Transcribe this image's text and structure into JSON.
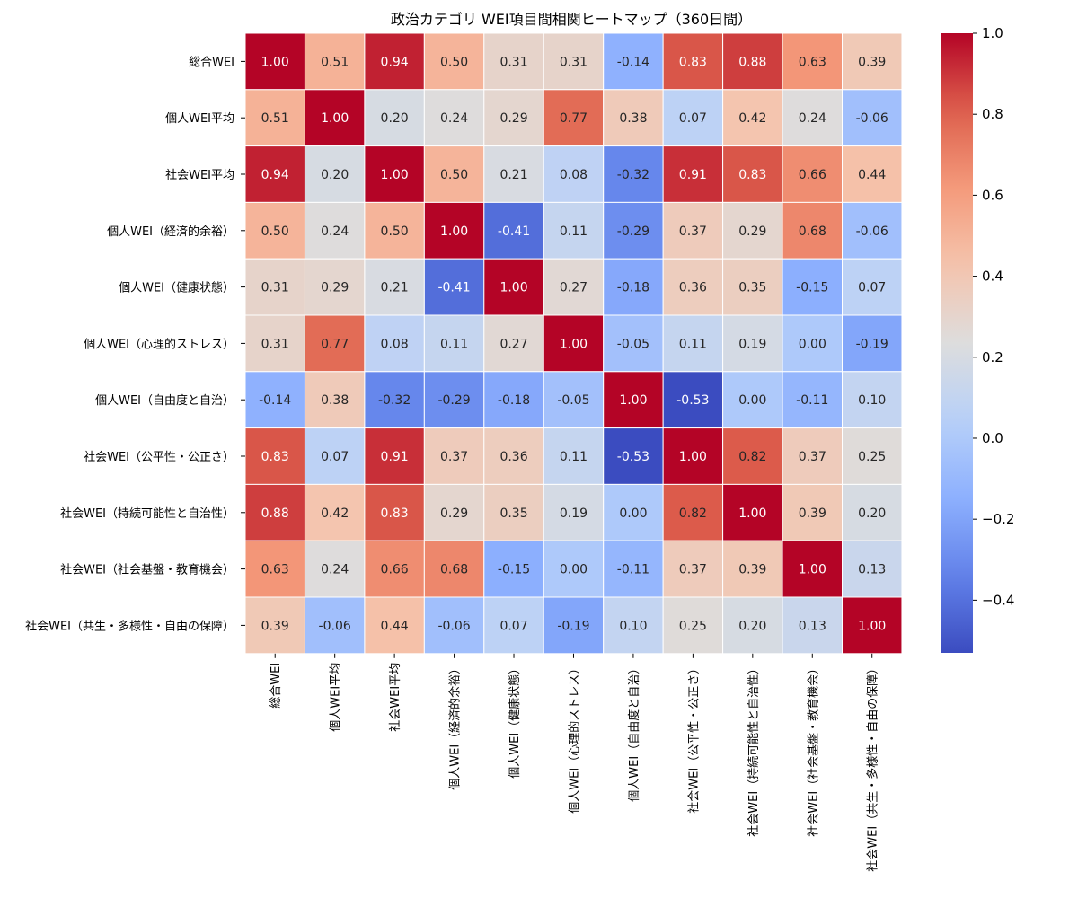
{
  "chart_data": {
    "type": "heatmap",
    "title": "政治カテゴリ WEI項目間相関ヒートマップ（360日間）",
    "xlabel": "",
    "ylabel": "",
    "categories": [
      "総合WEI",
      "個人WEI平均",
      "社会WEI平均",
      "個人WEI（経済的余裕）",
      "個人WEI（健康状態）",
      "個人WEI（心理的ストレス）",
      "個人WEI（自由度と自治）",
      "社会WEI（公平性・公正さ）",
      "社会WEI（持続可能性と自治性）",
      "社会WEI（社会基盤・教育機会）",
      "社会WEI（共生・多様性・自由の保障）"
    ],
    "matrix": [
      [
        1.0,
        0.51,
        0.94,
        0.5,
        0.31,
        0.31,
        -0.14,
        0.83,
        0.88,
        0.63,
        0.39
      ],
      [
        0.51,
        1.0,
        0.2,
        0.24,
        0.29,
        0.77,
        0.38,
        0.07,
        0.42,
        0.24,
        -0.06
      ],
      [
        0.94,
        0.2,
        1.0,
        0.5,
        0.21,
        0.08,
        -0.32,
        0.91,
        0.83,
        0.66,
        0.44
      ],
      [
        0.5,
        0.24,
        0.5,
        1.0,
        -0.41,
        0.11,
        -0.29,
        0.37,
        0.29,
        0.68,
        -0.06
      ],
      [
        0.31,
        0.29,
        0.21,
        -0.41,
        1.0,
        0.27,
        -0.18,
        0.36,
        0.35,
        -0.15,
        0.07
      ],
      [
        0.31,
        0.77,
        0.08,
        0.11,
        0.27,
        1.0,
        -0.05,
        0.11,
        0.19,
        0.0,
        -0.19
      ],
      [
        -0.14,
        0.38,
        -0.32,
        -0.29,
        -0.18,
        -0.05,
        1.0,
        -0.53,
        0.0,
        -0.11,
        0.1
      ],
      [
        0.83,
        0.07,
        0.91,
        0.37,
        0.36,
        0.11,
        -0.53,
        1.0,
        0.82,
        0.37,
        0.25
      ],
      [
        0.88,
        0.42,
        0.83,
        0.29,
        0.35,
        0.19,
        0.0,
        0.82,
        1.0,
        0.39,
        0.2
      ],
      [
        0.63,
        0.24,
        0.66,
        0.68,
        -0.15,
        0.0,
        -0.11,
        0.37,
        0.39,
        1.0,
        0.13
      ],
      [
        0.39,
        -0.06,
        0.44,
        -0.06,
        0.07,
        -0.19,
        0.1,
        0.25,
        0.2,
        0.13,
        1.0
      ]
    ],
    "colormap": "coolwarm",
    "vmin": -0.53,
    "vmax": 1.0,
    "colorbar_ticks": [
      -0.4,
      -0.2,
      0.0,
      0.2,
      0.4,
      0.6,
      0.8,
      1.0
    ],
    "colorbar_tick_labels": [
      "−0.4",
      "−0.2",
      "0.0",
      "0.2",
      "0.4",
      "0.6",
      "0.8",
      "1.0"
    ],
    "annotated": true,
    "legend": "colorbar-right"
  }
}
